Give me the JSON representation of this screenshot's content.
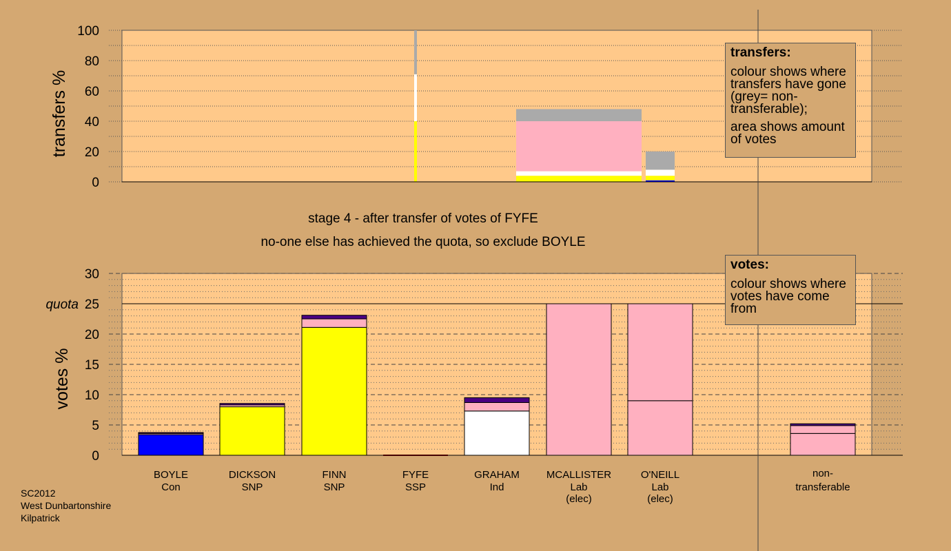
{
  "stage": {
    "line1": "stage 4 - after transfer of votes of FYFE",
    "line2": "no-one else has achieved the quota, so exclude BOYLE"
  },
  "legend_transfers": {
    "title": "transfers:",
    "text1": "colour shows where transfers have gone (grey= non-transferable);",
    "text2": "area shows amount of votes"
  },
  "legend_votes": {
    "title": "votes:",
    "text1": "colour shows where votes have come from"
  },
  "source": {
    "line1": "SC2012",
    "line2": "West Dunbartonshire",
    "line3": "Kilpatrick"
  },
  "colors": {
    "background": "#d4a872",
    "plot_bg": "#ffc98a",
    "Con": "#0000ff",
    "SNP": "#ffff00",
    "SSP": "#ff0000",
    "Ind": "#ffffff",
    "Lab": "#ffb0c0",
    "nontransferable": "#aaaaaa",
    "other": "#4b0082"
  },
  "chart_data": [
    {
      "type": "bar",
      "ylabel": "transfers %",
      "ylim": [
        0,
        100
      ],
      "yticks": [
        0,
        20,
        40,
        60,
        80,
        100
      ],
      "grid": "dotted",
      "bars": [
        {
          "candidate": "FYFE",
          "segments": [
            {
              "color": "SNP",
              "from": 0,
              "to": 40
            },
            {
              "color": "Ind",
              "from": 40,
              "to": 71
            },
            {
              "color": "nontransferable",
              "from": 71,
              "to": 100
            }
          ]
        },
        {
          "candidate": "MCALLISTER",
          "segments": [
            {
              "color": "SNP",
              "from": 0,
              "to": 4
            },
            {
              "color": "Ind",
              "from": 4,
              "to": 7
            },
            {
              "color": "Lab",
              "from": 7,
              "to": 40
            },
            {
              "color": "nontransferable",
              "from": 40,
              "to": 48
            }
          ]
        },
        {
          "candidate": "O'NEILL",
          "segments": [
            {
              "color": "Con",
              "from": 0,
              "to": 1
            },
            {
              "color": "SNP",
              "from": 1,
              "to": 4
            },
            {
              "color": "Ind",
              "from": 4,
              "to": 8
            },
            {
              "color": "nontransferable",
              "from": 8,
              "to": 20
            }
          ]
        }
      ]
    },
    {
      "type": "bar",
      "ylabel": "votes %",
      "ylim": [
        0,
        30
      ],
      "yticks": [
        0,
        5,
        10,
        15,
        20,
        25,
        30
      ],
      "quota": 25,
      "quota_label": "quota",
      "grid": "dashed",
      "categories": [
        {
          "name": "BOYLE",
          "party": "Con",
          "elec": ""
        },
        {
          "name": "DICKSON",
          "party": "SNP",
          "elec": ""
        },
        {
          "name": "FINN",
          "party": "SNP",
          "elec": ""
        },
        {
          "name": "FYFE",
          "party": "SSP",
          "elec": ""
        },
        {
          "name": "GRAHAM",
          "party": "Ind",
          "elec": ""
        },
        {
          "name": "MCALLISTER",
          "party": "Lab",
          "elec": "(elec)"
        },
        {
          "name": "O'NEILL",
          "party": "Lab",
          "elec": "(elec)"
        }
      ],
      "nontransferable_label": [
        "non-",
        "transferable"
      ],
      "bars": [
        {
          "candidate": "BOYLE",
          "segments": [
            {
              "color": "Con",
              "to": 3.4
            },
            {
              "color": "Lab",
              "to": 3.6
            },
            {
              "color": "other",
              "to": 3.75
            }
          ]
        },
        {
          "candidate": "DICKSON",
          "segments": [
            {
              "color": "SNP",
              "to": 8.0
            },
            {
              "color": "Lab",
              "to": 8.3
            },
            {
              "color": "other",
              "to": 8.55
            }
          ]
        },
        {
          "candidate": "FINN",
          "segments": [
            {
              "color": "SNP",
              "to": 21.1
            },
            {
              "color": "Lab",
              "to": 22.5
            },
            {
              "color": "other",
              "to": 23.1
            }
          ]
        },
        {
          "candidate": "FYFE",
          "segments": []
        },
        {
          "candidate": "GRAHAM",
          "segments": [
            {
              "color": "Ind",
              "to": 7.3
            },
            {
              "color": "Lab",
              "to": 8.7
            },
            {
              "color": "other",
              "to": 9.5
            }
          ]
        },
        {
          "candidate": "MCALLISTER",
          "segments": [
            {
              "color": "Lab",
              "to": 25.0
            }
          ]
        },
        {
          "candidate": "O'NEILL",
          "segments": [
            {
              "color": "Lab",
              "to": 9.0
            },
            {
              "color": "Lab",
              "to": 25.0
            }
          ]
        },
        {
          "candidate": "non-transferable",
          "segments": [
            {
              "color": "Lab",
              "to": 3.6
            },
            {
              "color": "Lab",
              "to": 4.9
            },
            {
              "color": "other",
              "to": 5.2
            }
          ]
        }
      ]
    }
  ]
}
